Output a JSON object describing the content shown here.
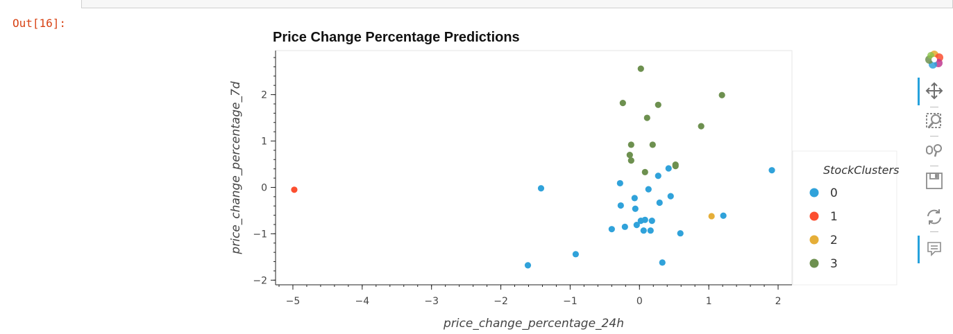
{
  "notebook": {
    "output_prompt": "Out[16]:"
  },
  "chart_data": {
    "type": "scatter",
    "title": "Price Change Percentage Predictions",
    "xlabel": "price_change_percentage_24h",
    "ylabel": "price_change_percentage_7d",
    "xlim": [
      -5.25,
      2.2
    ],
    "ylim": [
      -2.1,
      2.95
    ],
    "xticks": [
      -5,
      -4,
      -3,
      -2,
      -1,
      0,
      1,
      2
    ],
    "yticks": [
      -2,
      -1,
      0,
      1,
      2
    ],
    "grid": false,
    "legend": {
      "title": "StockClusters",
      "placement": "right"
    },
    "series": [
      {
        "name": "0",
        "color": "#30a2da",
        "points": [
          [
            -1.61,
            -1.68
          ],
          [
            -1.42,
            -0.02
          ],
          [
            -0.92,
            -1.44
          ],
          [
            -0.4,
            -0.9
          ],
          [
            -0.28,
            0.09
          ],
          [
            -0.27,
            -0.39
          ],
          [
            -0.21,
            -0.85
          ],
          [
            -0.07,
            -0.23
          ],
          [
            -0.06,
            -0.46
          ],
          [
            -0.04,
            -0.81
          ],
          [
            0.02,
            -0.72
          ],
          [
            0.06,
            -0.93
          ],
          [
            0.08,
            -0.7
          ],
          [
            0.13,
            -0.04
          ],
          [
            0.16,
            -0.93
          ],
          [
            0.18,
            -0.72
          ],
          [
            0.27,
            0.25
          ],
          [
            0.29,
            -0.33
          ],
          [
            0.33,
            -1.62
          ],
          [
            0.42,
            0.41
          ],
          [
            0.45,
            -0.19
          ],
          [
            0.59,
            -0.99
          ],
          [
            1.21,
            -0.61
          ],
          [
            1.91,
            0.37
          ]
        ]
      },
      {
        "name": "1",
        "color": "#fc4f30",
        "points": [
          [
            -4.98,
            -0.05
          ]
        ]
      },
      {
        "name": "2",
        "color": "#e5ae38",
        "points": [
          [
            1.04,
            -0.62
          ]
        ]
      },
      {
        "name": "3",
        "color": "#6d904f",
        "points": [
          [
            -0.24,
            1.82
          ],
          [
            -0.14,
            0.7
          ],
          [
            -0.12,
            0.58
          ],
          [
            -0.12,
            0.92
          ],
          [
            0.02,
            2.56
          ],
          [
            0.08,
            0.33
          ],
          [
            0.11,
            1.5
          ],
          [
            0.19,
            0.92
          ],
          [
            0.27,
            1.78
          ],
          [
            0.52,
            0.49
          ],
          [
            0.52,
            0.46
          ],
          [
            0.89,
            1.32
          ],
          [
            1.19,
            1.99
          ]
        ]
      }
    ]
  },
  "toolbar": [
    {
      "name": "bokeh-logo-icon",
      "active": false
    },
    {
      "name": "pan-icon",
      "active": true
    },
    {
      "name": "box-zoom-icon",
      "active": false
    },
    {
      "name": "wheel-zoom-icon",
      "active": false
    },
    {
      "name": "save-icon",
      "active": false
    },
    {
      "name": "reset-icon",
      "active": false
    },
    {
      "name": "hover-icon",
      "active": true
    }
  ]
}
